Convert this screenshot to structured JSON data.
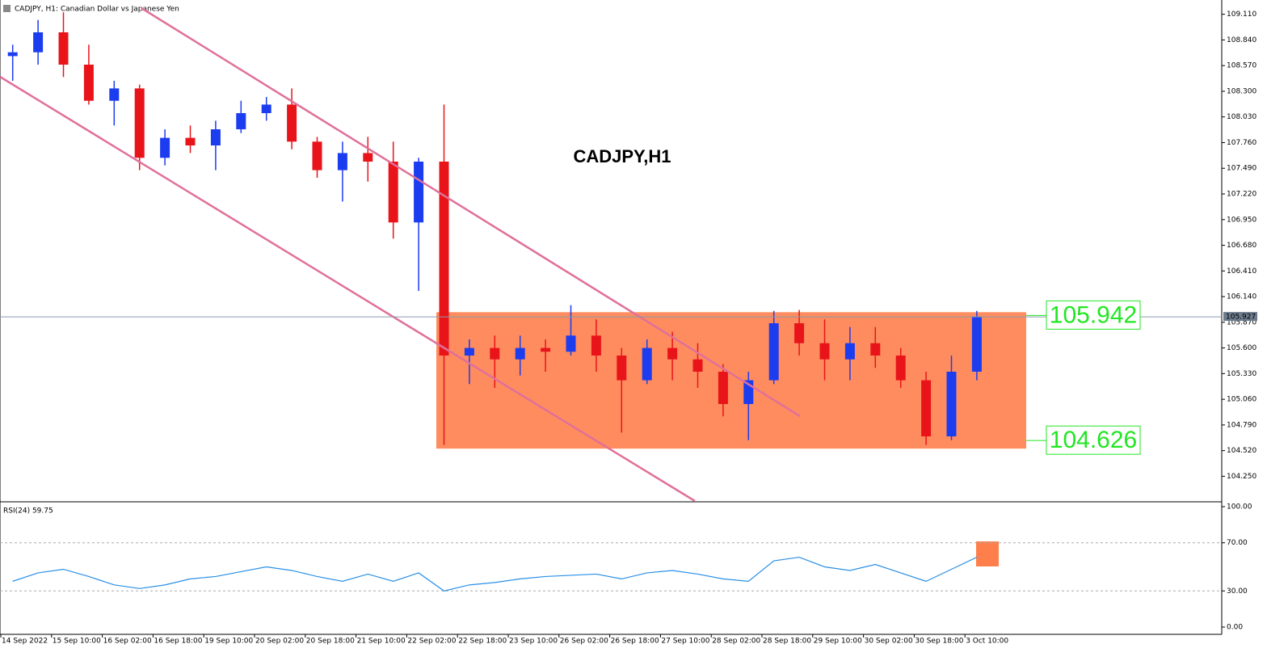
{
  "chart_data": [
    {
      "type": "candlestick",
      "header": "CADJPY, H1:  Canadian Dollar vs Japanese Yen",
      "title": "CADJPY,H1",
      "categories": [
        "14 Sep 2022",
        null,
        "15 Sep 10:00",
        null,
        "16 Sep 02:00",
        null,
        "16 Sep 18:00",
        null,
        "19 Sep 10:00",
        null,
        "20 Sep 02:00",
        null,
        "20 Sep 18:00",
        null,
        "21 Sep 10:00",
        null,
        "22 Sep 02:00",
        null,
        "22 Sep 18:00",
        null,
        "23 Sep 10:00",
        null,
        "26 Sep 02:00",
        null,
        "26 Sep 18:00",
        null,
        "27 Sep 10:00",
        null,
        "28 Sep 02:00",
        null,
        "28 Sep 18:00",
        null,
        "29 Sep 10:00",
        null,
        "30 Sep 02:00",
        null,
        "30 Sep 18:00",
        null,
        "3 Oct 10:00"
      ],
      "open": [
        108.67,
        108.71,
        108.92,
        108.58,
        108.2,
        108.33,
        107.6,
        107.81,
        107.73,
        107.9,
        108.07,
        108.16,
        107.77,
        107.47,
        107.65,
        107.56,
        106.92,
        107.56,
        105.52,
        105.6,
        105.48,
        105.6,
        105.56,
        105.73,
        105.52,
        105.26,
        105.6,
        105.48,
        105.35,
        105.01,
        105.26,
        105.86,
        105.65,
        105.48,
        105.65,
        105.52,
        105.26,
        104.67,
        105.35
      ],
      "high": [
        108.79,
        109.05,
        109.13,
        108.79,
        108.41,
        108.37,
        107.9,
        107.94,
        107.99,
        108.2,
        108.24,
        108.33,
        107.82,
        107.77,
        107.82,
        107.77,
        107.6,
        108.16,
        105.69,
        105.73,
        105.73,
        105.69,
        106.05,
        105.9,
        105.6,
        105.69,
        105.77,
        105.65,
        105.43,
        105.35,
        105.99,
        106.0,
        105.9,
        105.82,
        105.82,
        105.6,
        105.35,
        105.52,
        105.99
      ],
      "low": [
        108.41,
        108.58,
        108.45,
        108.16,
        107.94,
        107.47,
        107.52,
        107.65,
        107.47,
        107.86,
        107.99,
        107.69,
        107.39,
        107.14,
        107.35,
        106.75,
        106.2,
        104.58,
        105.22,
        105.18,
        105.31,
        105.35,
        105.52,
        105.35,
        104.71,
        105.22,
        105.26,
        105.18,
        104.88,
        104.63,
        105.22,
        105.52,
        105.26,
        105.26,
        105.39,
        105.18,
        104.58,
        104.63,
        105.26
      ],
      "close": [
        108.71,
        108.92,
        108.58,
        108.2,
        108.33,
        107.6,
        107.81,
        107.73,
        107.9,
        108.07,
        108.16,
        107.77,
        107.47,
        107.65,
        107.56,
        106.92,
        107.56,
        105.52,
        105.6,
        105.48,
        105.6,
        105.56,
        105.73,
        105.52,
        105.26,
        105.6,
        105.48,
        105.35,
        105.01,
        105.26,
        105.86,
        105.65,
        105.48,
        105.65,
        105.52,
        105.26,
        104.67,
        105.35,
        105.93
      ],
      "up_color": "#1c3cf0",
      "down_color": "#e8141a",
      "ylim": [
        103.99,
        109.26
      ],
      "yticks": [
        {
          "value": 109.11,
          "label": "109.110"
        },
        {
          "value": 108.84,
          "label": "108.840"
        },
        {
          "value": 108.57,
          "label": "108.570"
        },
        {
          "value": 108.3,
          "label": "108.300"
        },
        {
          "value": 108.03,
          "label": "108.030"
        },
        {
          "value": 107.76,
          "label": "107.760"
        },
        {
          "value": 107.49,
          "label": "107.490"
        },
        {
          "value": 107.22,
          "label": "107.220"
        },
        {
          "value": 106.95,
          "label": "106.950"
        },
        {
          "value": 106.68,
          "label": "106.680"
        },
        {
          "value": 106.41,
          "label": "106.410"
        },
        {
          "value": 106.14,
          "label": "106.140"
        },
        {
          "value": 105.87,
          "label": "105.870"
        },
        {
          "value": 105.6,
          "label": "105.600"
        },
        {
          "value": 105.33,
          "label": "105.330"
        },
        {
          "value": 105.06,
          "label": "105.060"
        },
        {
          "value": 104.79,
          "label": "104.790"
        },
        {
          "value": 104.52,
          "label": "104.520"
        },
        {
          "value": 104.25,
          "label": "104.250"
        }
      ],
      "current_price": 105.927,
      "levels": [
        105.942,
        104.626
      ],
      "zone_color": "#ff7f4c"
    },
    {
      "type": "line",
      "title": "RSI(24) 59.75",
      "values": [
        38,
        45,
        48,
        42,
        35,
        32,
        35,
        40,
        42,
        46,
        50,
        47,
        42,
        38,
        44,
        38,
        45,
        30,
        35,
        37,
        40,
        42,
        43,
        44,
        40,
        45,
        47,
        44,
        40,
        38,
        55,
        58,
        50,
        47,
        52,
        45,
        38,
        48,
        58
      ],
      "color": "#2a8fe6",
      "ylim": [
        0,
        100
      ],
      "yticks": [
        {
          "value": 100,
          "label": "100.00"
        },
        {
          "value": 70,
          "label": "70.00"
        },
        {
          "value": 30,
          "label": "30.00"
        },
        {
          "value": 0,
          "label": "0.00"
        }
      ]
    }
  ]
}
